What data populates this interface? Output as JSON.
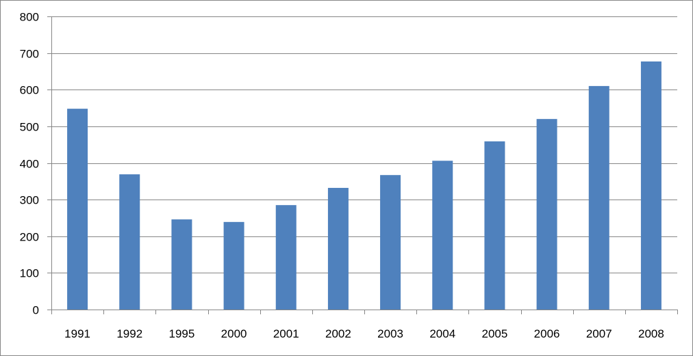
{
  "chart_data": {
    "type": "bar",
    "title": "",
    "xlabel": "",
    "ylabel": "",
    "categories": [
      "1991",
      "1992",
      "1995",
      "2000",
      "2001",
      "2002",
      "2003",
      "2004",
      "2005",
      "2006",
      "2007",
      "2008"
    ],
    "values": [
      548,
      369,
      246,
      239,
      285,
      332,
      367,
      406,
      459,
      520,
      610,
      677
    ],
    "ylim": [
      0,
      800
    ],
    "yticks": [
      0,
      100,
      200,
      300,
      400,
      500,
      600,
      700,
      800
    ],
    "grid": true,
    "legend": "none",
    "bar_color": "#4F81BD"
  }
}
